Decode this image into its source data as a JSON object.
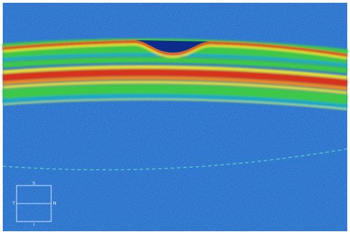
{
  "orientation": {
    "top": "S",
    "left": "T",
    "right": "N",
    "bottom": "I"
  }
}
